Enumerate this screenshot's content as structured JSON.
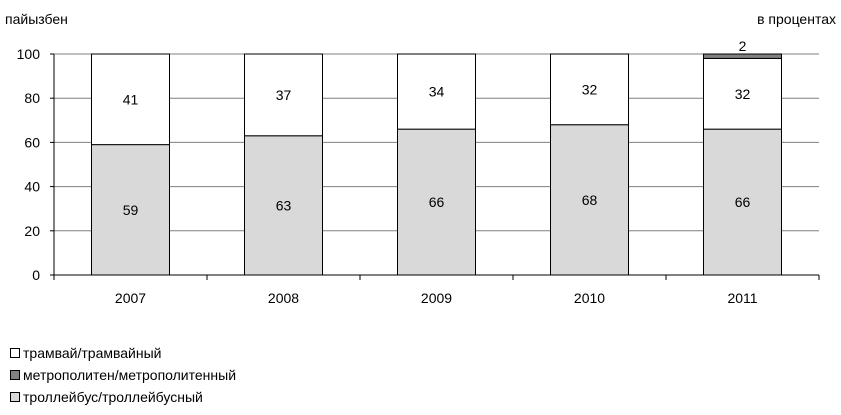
{
  "chart_data": {
    "type": "bar",
    "stacked": true,
    "corner_left_label": "пайызбен",
    "corner_right_label": "в процентах",
    "categories": [
      "2007",
      "2008",
      "2009",
      "2010",
      "2011"
    ],
    "series": [
      {
        "name": "троллейбус/троллейбусный",
        "values": [
          59,
          63,
          66,
          68,
          66
        ],
        "color": "#d9d9d9",
        "labels": [
          "59",
          "63",
          "66",
          "68",
          "66"
        ]
      },
      {
        "name": "трамвай/трамвайный",
        "values": [
          41,
          37,
          34,
          32,
          32
        ],
        "color": "#ffffff",
        "labels": [
          "41",
          "37",
          "34",
          "32",
          "32"
        ]
      },
      {
        "name": "метрополитен/метрополитенный",
        "values": [
          0,
          0,
          0,
          0,
          2
        ],
        "color": "#808080",
        "labels": [
          "",
          "",
          "",
          "",
          "2"
        ]
      }
    ],
    "ylim": [
      0,
      100
    ],
    "yticks": [
      "0",
      "20",
      "40",
      "60",
      "80",
      "100"
    ],
    "grid": true,
    "legend_position": "bottom-left",
    "legend_order": [
      "трамвай/трамвайный",
      "метрополитен/метрополитенный",
      "троллейбус/троллейбусный"
    ]
  }
}
